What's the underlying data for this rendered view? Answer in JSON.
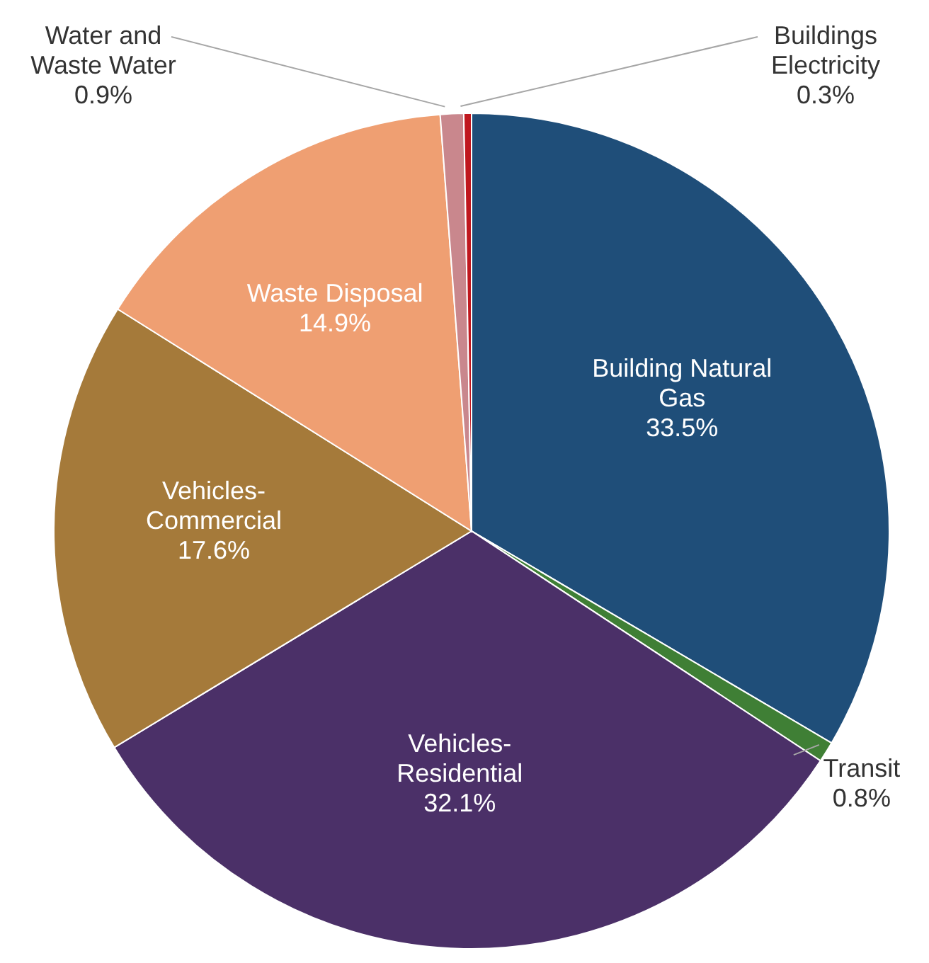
{
  "chart_data": {
    "type": "pie",
    "categories": [
      "Building Natural Gas",
      "Transit",
      "Vehicles-Residential",
      "Vehicles-Commercial",
      "Waste Disposal",
      "Water and Waste Water",
      "Buildings Electricity"
    ],
    "values": [
      33.5,
      0.8,
      32.1,
      17.6,
      14.9,
      0.9,
      0.3
    ],
    "value_labels": [
      "33.5%",
      "0.8%",
      "32.1%",
      "17.6%",
      "14.9%",
      "0.9%",
      "0.3%"
    ],
    "colors": [
      "#1f4e79",
      "#3f7f35",
      "#4b3068",
      "#a57a3a",
      "#ef9f72",
      "#c9878d",
      "#c0171e"
    ],
    "legend": false
  }
}
